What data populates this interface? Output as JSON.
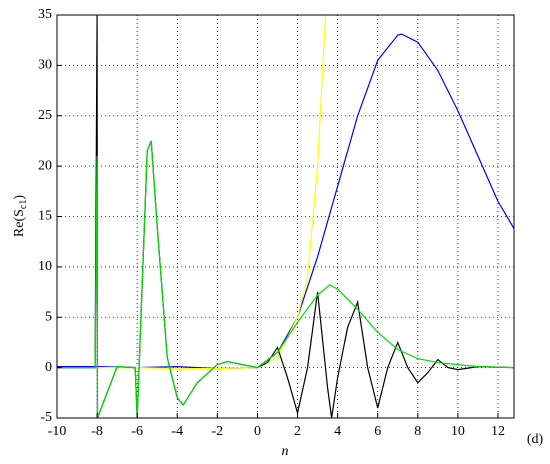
{
  "chart_data": {
    "type": "line",
    "ylabel": [
      "Re(S",
      "c1",
      ")"
    ],
    "xlabel": "n",
    "annotation": "(d)",
    "xlim": [
      -10,
      12.8
    ],
    "ylim": [
      -5,
      35
    ],
    "xticks": [
      -10,
      -8,
      -6,
      -4,
      -2,
      0,
      2,
      4,
      6,
      8,
      10,
      12
    ],
    "yticks": [
      -5,
      0,
      5,
      10,
      15,
      20,
      25,
      30,
      35
    ],
    "grid": true,
    "series": [
      {
        "color": "#0000ff",
        "x": [
          -10,
          -8,
          -6,
          -4,
          -2,
          0,
          1,
          2,
          3,
          4,
          5,
          6,
          7,
          7.2,
          8,
          9,
          10,
          11,
          12,
          12.8
        ],
        "values": [
          0.1,
          0.1,
          0,
          0.1,
          -0.1,
          0,
          1.5,
          5,
          11,
          18,
          25,
          30.5,
          33,
          33.1,
          32.3,
          29.5,
          25.5,
          21,
          16.5,
          13.8
        ]
      },
      {
        "color": "#ffff00",
        "x": [
          -10,
          -8,
          -6,
          -4,
          -2,
          0,
          1,
          2,
          2.5,
          3,
          3.4
        ],
        "values": [
          0,
          0,
          0,
          -0.1,
          -0.1,
          0,
          1,
          5,
          9,
          20,
          35
        ]
      },
      {
        "color": "#000000",
        "x": [
          -10,
          -9,
          -8.1,
          -8,
          -7.98,
          -7,
          -6.1,
          -6,
          -5.5,
          -5.3,
          -5,
          -4.5,
          -4,
          -3.7,
          -3,
          -2,
          -1.5,
          -1,
          0,
          0.5,
          1,
          1.5,
          2,
          2.5,
          3,
          3.5,
          3.7,
          4,
          4.5,
          5,
          5.5,
          6,
          6.5,
          7,
          7.5,
          8,
          8.5,
          9,
          9.5,
          10,
          11,
          12.8
        ],
        "values": [
          0,
          0,
          0,
          35,
          -5,
          0.1,
          0,
          -5,
          21.5,
          22.5,
          14,
          1,
          -3,
          -3.7,
          -1.5,
          0.3,
          0.6,
          0.4,
          0,
          0.5,
          2,
          -1,
          -4.5,
          0,
          7.5,
          -2,
          -5,
          -1,
          4,
          6.5,
          0,
          -4,
          0,
          2.5,
          0,
          -1.5,
          -0.5,
          0.8,
          0,
          -0.2,
          0.1,
          0
        ]
      },
      {
        "color": "#00dd00",
        "x": [
          -10,
          -9,
          -8.1,
          -8,
          -7.98,
          -7,
          -6.1,
          -6,
          -5.5,
          -5.3,
          -5,
          -4.5,
          -4,
          -3.7,
          -3,
          -2,
          -1.5,
          -1,
          0,
          1,
          2,
          3,
          3.6,
          4,
          5,
          6,
          7,
          8,
          9,
          10,
          11,
          12.8
        ],
        "values": [
          0,
          0,
          0,
          21,
          -5,
          0.1,
          0,
          -5,
          21.5,
          22.5,
          14,
          1,
          -3,
          -3.7,
          -1.5,
          0.3,
          0.6,
          0.4,
          0,
          1.5,
          4.5,
          7.2,
          8.2,
          7.8,
          5.8,
          3.5,
          1.8,
          0.9,
          0.5,
          0.3,
          0.1,
          0
        ]
      }
    ]
  }
}
